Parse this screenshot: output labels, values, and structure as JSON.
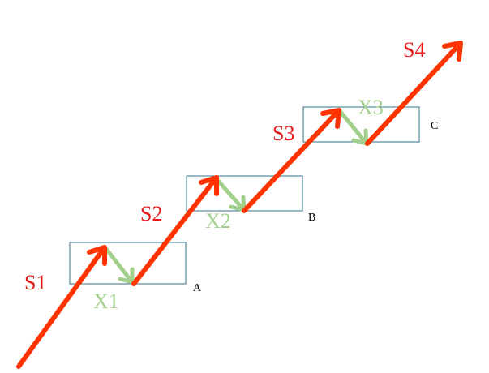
{
  "labels": {
    "s1": "S1",
    "s2": "S2",
    "s3": "S3",
    "s4": "S4",
    "x1": "X1",
    "x2": "X2",
    "x3": "X3",
    "a": "A",
    "b": "B",
    "c": "C"
  },
  "colors": {
    "s_arrows": "#ff3300",
    "s_labels": "#e8191b",
    "x_arrows": "#a3cf8c",
    "box_border": "#31708a"
  }
}
